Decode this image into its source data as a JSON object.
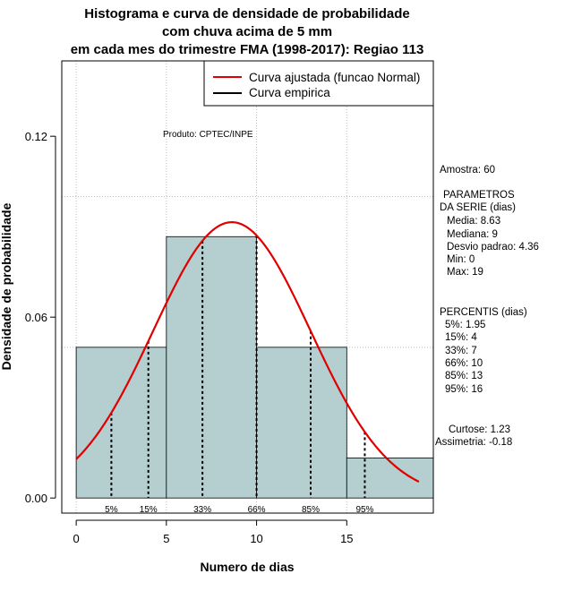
{
  "chart_data": {
    "type": "bar",
    "title_lines": [
      "Histograma e curva de densidade de probabilidade",
      "com chuva acima de 5 mm",
      "em cada mes do trimestre FMA (1998-2017): Regiao 113"
    ],
    "xlabel": "Numero de dias",
    "ylabel": "Densidade de probabilidade",
    "xlim": [
      -0.8,
      19.8
    ],
    "ylim": [
      -0.005,
      0.145
    ],
    "x_ticks": [
      0,
      5,
      10,
      15
    ],
    "x_tick_labels": [
      "0",
      "5",
      "10",
      "15"
    ],
    "y_ticks": [
      0.0,
      0.06,
      0.12
    ],
    "y_tick_labels": [
      "0.00",
      "0.06",
      "0.12"
    ],
    "grid_x": [
      0,
      5,
      10,
      15
    ],
    "grid_y": [
      0.05,
      0.1
    ],
    "bins": [
      {
        "start": 0,
        "end": 5,
        "density": 0.05
      },
      {
        "start": 5,
        "end": 10,
        "density": 0.0867
      },
      {
        "start": 10,
        "end": 15,
        "density": 0.05
      },
      {
        "start": 15,
        "end": 20,
        "density": 0.0133
      }
    ],
    "normal_curve": {
      "mean": 8.63,
      "sd": 4.36,
      "x_range": [
        0,
        19
      ]
    },
    "percentile_markers": [
      {
        "label": "5%",
        "x": 1.95
      },
      {
        "label": "15%",
        "x": 4
      },
      {
        "label": "33%",
        "x": 7
      },
      {
        "label": "66%",
        "x": 10
      },
      {
        "label": "85%",
        "x": 13
      },
      {
        "label": "95%",
        "x": 16
      }
    ],
    "legend": {
      "position": "top-right",
      "entries": [
        {
          "label": "Curva ajustada (funcao Normal)",
          "color": "#e00000"
        },
        {
          "label": "Curva empirica",
          "color": "#000000"
        }
      ]
    },
    "annotation": "Produto: CPTEC/INPE",
    "colors": {
      "bar_fill": "#b5cecf",
      "curve": "#e00000",
      "grid": "#bebebe"
    }
  },
  "side_panel": {
    "amostra": "Amostra: 60",
    "parametros_title_1": "PARAMETROS",
    "parametros_title_2": "DA SERIE (dias)",
    "parametros": [
      "Media: 8.63",
      "Mediana: 9",
      "Desvio padrao: 4.36",
      "Min: 0",
      "Max: 19"
    ],
    "percentis_title": "PERCENTIS (dias)",
    "percentis": [
      "5%: 1.95",
      "15%: 4",
      "33%: 7",
      "66%: 10",
      "85%: 13",
      "95%: 16"
    ],
    "curtose": "Curtose: 1.23",
    "assimetria": "Assimetria: -0.18"
  }
}
